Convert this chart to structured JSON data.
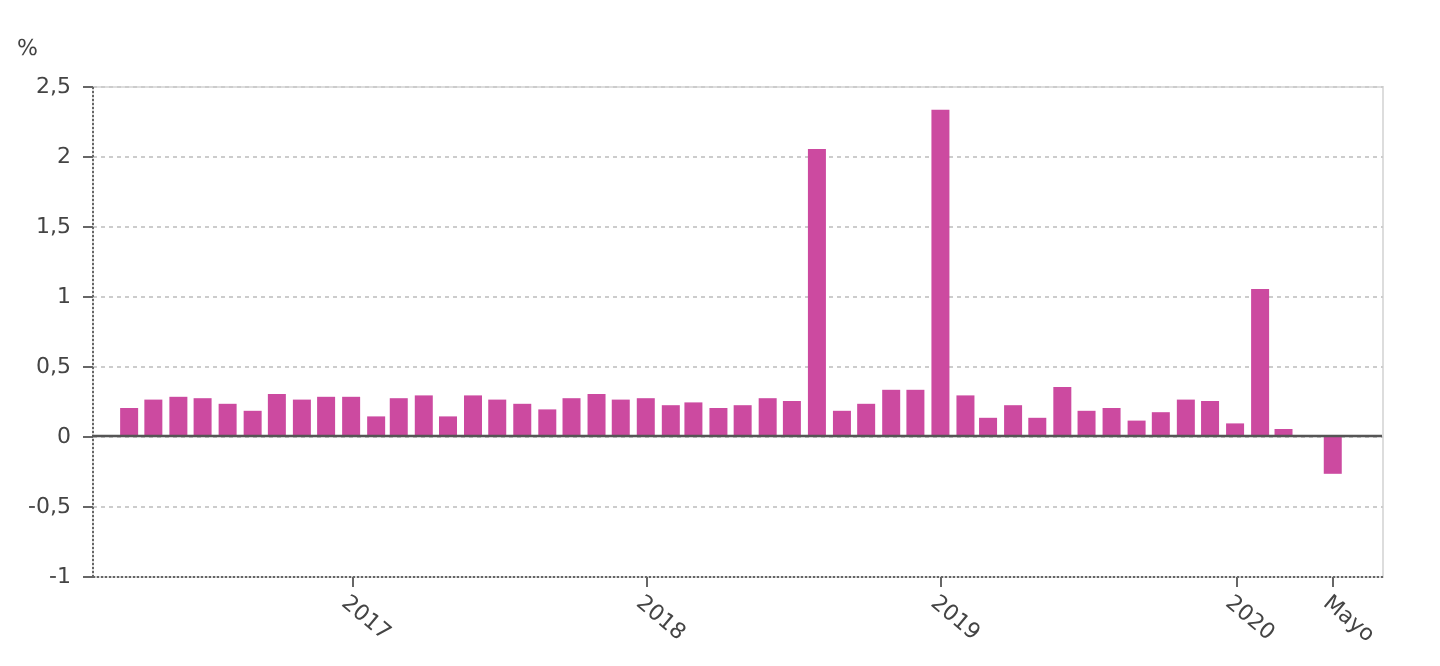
{
  "chart_data": {
    "type": "bar",
    "ylabel": "%",
    "x": [
      "2016-04",
      "2016-05",
      "2016-06",
      "2016-07",
      "2016-08",
      "2016-09",
      "2016-10",
      "2016-11",
      "2016-12",
      "2017-01",
      "2017-02",
      "2017-03",
      "2017-04",
      "2017-05",
      "2017-06",
      "2017-07",
      "2017-08",
      "2017-09",
      "2017-10",
      "2017-11",
      "2017-12",
      "2018-01",
      "2018-02",
      "2018-03",
      "2018-04",
      "2018-05",
      "2018-06",
      "2018-07",
      "2018-08",
      "2018-09",
      "2018-10",
      "2018-11",
      "2018-12",
      "2019-01",
      "2019-02",
      "2019-03",
      "2019-04",
      "2019-05",
      "2019-06",
      "2019-07",
      "2019-08",
      "2019-09",
      "2019-10",
      "2019-11",
      "2019-12",
      "2020-01",
      "2020-02",
      "2020-03",
      "2020-04",
      "2020-05"
    ],
    "values": [
      0.2,
      0.26,
      0.28,
      0.27,
      0.23,
      0.18,
      0.3,
      0.26,
      0.28,
      0.28,
      0.14,
      0.27,
      0.29,
      0.14,
      0.29,
      0.26,
      0.23,
      0.19,
      0.27,
      0.3,
      0.26,
      0.27,
      0.22,
      0.24,
      0.2,
      0.22,
      0.27,
      0.25,
      2.05,
      0.18,
      0.23,
      0.33,
      0.33,
      2.33,
      0.29,
      0.13,
      0.22,
      0.13,
      0.35,
      0.18,
      0.2,
      0.11,
      0.17,
      0.26,
      0.25,
      0.09,
      1.05,
      0.05,
      0.0,
      -0.27
    ],
    "color": "#cc4aa0",
    "xlim": [
      "2016-02-15",
      "2020-07-01"
    ],
    "xticks": [
      {
        "value": "2017-01",
        "label": "2017"
      },
      {
        "value": "2018-01",
        "label": "2018"
      },
      {
        "value": "2019-01",
        "label": "2019"
      },
      {
        "value": "2020-01",
        "label": "2020"
      },
      {
        "value": "2020-05",
        "label": "Mayo"
      }
    ],
    "ylim": [
      -1,
      2.5
    ],
    "yticks": [
      {
        "value": -1,
        "label": "-1"
      },
      {
        "value": -0.5,
        "label": "-0,5"
      },
      {
        "value": 0,
        "label": "0"
      },
      {
        "value": 0.5,
        "label": "0,5"
      },
      {
        "value": 1,
        "label": "1"
      },
      {
        "value": 1.5,
        "label": "1,5"
      },
      {
        "value": 2,
        "label": "2"
      },
      {
        "value": 2.5,
        "label": "2,5"
      }
    ],
    "grid": "y"
  }
}
